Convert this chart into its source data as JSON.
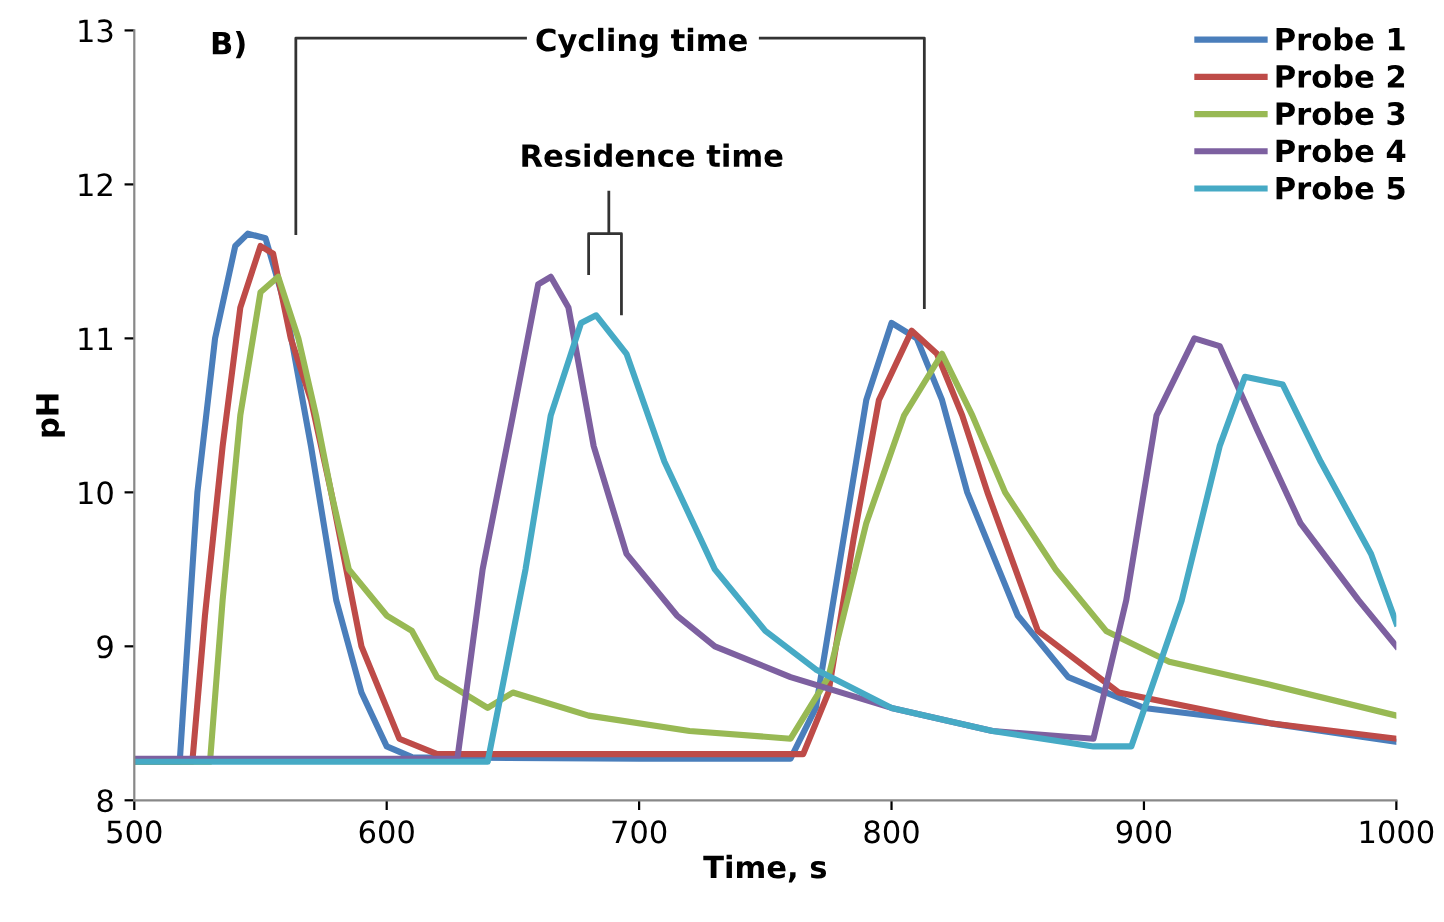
{
  "chart_data": {
    "type": "line",
    "xlabel": "Time, s",
    "ylabel": "pH",
    "annotations": [
      "B)",
      "Cycling time",
      "Residence time"
    ],
    "xlim": [
      500,
      1000
    ],
    "xticks": [
      500,
      600,
      700,
      800,
      900,
      1000
    ],
    "ylim": [
      8,
      13
    ],
    "yticks": [
      8,
      9,
      10,
      11,
      12,
      13
    ],
    "grid": false,
    "legend": "top right",
    "marker": "none",
    "line_style": "solid",
    "series": [
      {
        "name": "Probe 1",
        "color": "#4a7ebb",
        "x": [
          500,
          518,
          521,
          525,
          532,
          540,
          545,
          552,
          560,
          570,
          580,
          590,
          600,
          610,
          700,
          760,
          770,
          780,
          790,
          800,
          810,
          820,
          830,
          850,
          870,
          900,
          950,
          1000
        ],
        "values": [
          8.25,
          8.25,
          9.0,
          10.0,
          11.0,
          11.6,
          11.68,
          11.65,
          11.2,
          10.3,
          9.3,
          8.7,
          8.35,
          8.28,
          8.27,
          8.27,
          8.6,
          9.6,
          10.6,
          11.1,
          11.0,
          10.6,
          10.0,
          9.2,
          8.8,
          8.6,
          8.5,
          8.38
        ]
      },
      {
        "name": "Probe 2",
        "color": "#be4b48",
        "x": [
          500,
          523,
          528,
          535,
          542,
          550,
          555,
          562,
          570,
          578,
          590,
          605,
          620,
          700,
          765,
          775,
          785,
          795,
          808,
          818,
          828,
          838,
          858,
          890,
          950,
          1000
        ],
        "values": [
          8.25,
          8.25,
          9.2,
          10.3,
          11.2,
          11.6,
          11.55,
          11.0,
          10.6,
          10.0,
          9.0,
          8.4,
          8.3,
          8.3,
          8.3,
          8.7,
          9.7,
          10.6,
          11.05,
          10.9,
          10.5,
          10.0,
          9.1,
          8.7,
          8.5,
          8.4
        ]
      },
      {
        "name": "Probe 3",
        "color": "#98b954",
        "x": [
          500,
          530,
          535,
          542,
          550,
          557,
          565,
          572,
          578,
          585,
          600,
          610,
          620,
          640,
          650,
          680,
          720,
          760,
          775,
          790,
          805,
          820,
          832,
          845,
          865,
          885,
          910,
          950,
          1000
        ],
        "values": [
          8.25,
          8.25,
          9.3,
          10.5,
          11.3,
          11.4,
          11.0,
          10.5,
          10.0,
          9.5,
          9.2,
          9.1,
          8.8,
          8.6,
          8.7,
          8.55,
          8.45,
          8.4,
          8.8,
          9.8,
          10.5,
          10.9,
          10.5,
          10.0,
          9.5,
          9.1,
          8.9,
          8.75,
          8.55
        ]
      },
      {
        "name": "Probe 4",
        "color": "#7d60a0",
        "x": [
          500,
          628,
          638,
          650,
          660,
          665,
          672,
          682,
          695,
          715,
          730,
          760,
          800,
          840,
          880,
          893,
          905,
          920,
          930,
          945,
          962,
          985,
          1000
        ],
        "values": [
          8.27,
          8.27,
          9.5,
          10.5,
          11.35,
          11.4,
          11.2,
          10.3,
          9.6,
          9.2,
          9.0,
          8.8,
          8.6,
          8.45,
          8.4,
          9.3,
          10.5,
          11.0,
          10.95,
          10.4,
          9.8,
          9.3,
          9.0
        ]
      },
      {
        "name": "Probe 5",
        "color": "#46aac5",
        "x": [
          500,
          640,
          655,
          665,
          677,
          683,
          695,
          710,
          730,
          750,
          770,
          800,
          840,
          880,
          895,
          915,
          930,
          940,
          955,
          970,
          990,
          1000
        ],
        "values": [
          8.25,
          8.25,
          9.5,
          10.5,
          11.1,
          11.15,
          10.9,
          10.2,
          9.5,
          9.1,
          8.85,
          8.6,
          8.45,
          8.35,
          8.35,
          9.3,
          10.3,
          10.75,
          10.7,
          10.2,
          9.6,
          9.15
        ]
      }
    ]
  }
}
